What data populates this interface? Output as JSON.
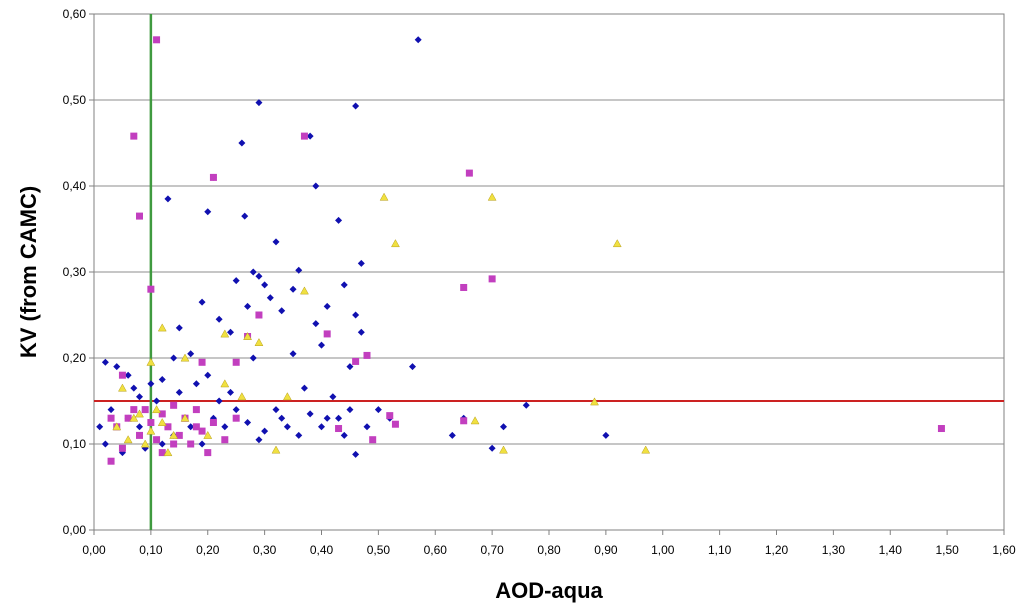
{
  "chart_data": {
    "type": "scatter",
    "title": "",
    "xlabel": "AOD-aqua",
    "ylabel": "KV (from CAMC)",
    "xlim": [
      0,
      1.6
    ],
    "ylim": [
      0,
      0.6
    ],
    "x_ticks": [
      "0,00",
      "0,10",
      "0,20",
      "0,30",
      "0,40",
      "0,50",
      "0,60",
      "0,70",
      "0,80",
      "0,90",
      "1,00",
      "1,10",
      "1,20",
      "1,30",
      "1,40",
      "1,50",
      "1,60"
    ],
    "y_ticks": [
      "0,00",
      "0,10",
      "0,20",
      "0,30",
      "0,40",
      "0,50",
      "0,60"
    ],
    "grid": {
      "horizontal": true,
      "vertical": false
    },
    "reference_lines": [
      {
        "orientation": "horizontal",
        "value": 0.15,
        "color": "#cc2222"
      },
      {
        "orientation": "vertical",
        "value": 0.1,
        "color": "#3f9a3f"
      }
    ],
    "series": [
      {
        "marker": "diamond",
        "color": "#1010b0",
        "points": [
          [
            0.02,
            0.195
          ],
          [
            0.04,
            0.19
          ],
          [
            0.06,
            0.18
          ],
          [
            0.07,
            0.165
          ],
          [
            0.08,
            0.155
          ],
          [
            0.1,
            0.17
          ],
          [
            0.11,
            0.15
          ],
          [
            0.12,
            0.175
          ],
          [
            0.13,
            0.385
          ],
          [
            0.14,
            0.2
          ],
          [
            0.15,
            0.235
          ],
          [
            0.17,
            0.205
          ],
          [
            0.19,
            0.265
          ],
          [
            0.2,
            0.37
          ],
          [
            0.21,
            0.41
          ],
          [
            0.22,
            0.245
          ],
          [
            0.24,
            0.23
          ],
          [
            0.25,
            0.29
          ],
          [
            0.26,
            0.45
          ],
          [
            0.265,
            0.365
          ],
          [
            0.27,
            0.26
          ],
          [
            0.28,
            0.3
          ],
          [
            0.29,
            0.295
          ],
          [
            0.29,
            0.497
          ],
          [
            0.3,
            0.285
          ],
          [
            0.31,
            0.27
          ],
          [
            0.32,
            0.335
          ],
          [
            0.33,
            0.255
          ],
          [
            0.35,
            0.28
          ],
          [
            0.36,
            0.302
          ],
          [
            0.38,
            0.458
          ],
          [
            0.39,
            0.4
          ],
          [
            0.39,
            0.24
          ],
          [
            0.4,
            0.215
          ],
          [
            0.41,
            0.26
          ],
          [
            0.43,
            0.36
          ],
          [
            0.44,
            0.285
          ],
          [
            0.45,
            0.19
          ],
          [
            0.46,
            0.493
          ],
          [
            0.46,
            0.25
          ],
          [
            0.47,
            0.31
          ],
          [
            0.47,
            0.23
          ],
          [
            0.5,
            0.14
          ],
          [
            0.52,
            0.13
          ],
          [
            0.56,
            0.19
          ],
          [
            0.57,
            0.57
          ],
          [
            0.63,
            0.11
          ],
          [
            0.65,
            0.13
          ],
          [
            0.7,
            0.095
          ],
          [
            0.72,
            0.12
          ],
          [
            0.76,
            0.145
          ],
          [
            0.9,
            0.11
          ],
          [
            0.2,
            0.18
          ],
          [
            0.24,
            0.16
          ],
          [
            0.28,
            0.2
          ],
          [
            0.32,
            0.14
          ],
          [
            0.35,
            0.205
          ],
          [
            0.37,
            0.165
          ],
          [
            0.42,
            0.155
          ],
          [
            0.46,
            0.088
          ],
          [
            0.05,
            0.09
          ],
          [
            0.09,
            0.095
          ],
          [
            0.12,
            0.1
          ],
          [
            0.17,
            0.12
          ],
          [
            0.21,
            0.13
          ],
          [
            0.25,
            0.14
          ],
          [
            0.3,
            0.115
          ],
          [
            0.34,
            0.12
          ],
          [
            0.38,
            0.135
          ],
          [
            0.43,
            0.13
          ],
          [
            0.48,
            0.12
          ],
          [
            0.03,
            0.14
          ],
          [
            0.01,
            0.12
          ],
          [
            0.06,
            0.13
          ],
          [
            0.15,
            0.16
          ],
          [
            0.18,
            0.17
          ],
          [
            0.22,
            0.15
          ],
          [
            0.27,
            0.125
          ],
          [
            0.33,
            0.13
          ],
          [
            0.4,
            0.12
          ],
          [
            0.45,
            0.14
          ],
          [
            0.02,
            0.1
          ],
          [
            0.08,
            0.12
          ],
          [
            0.14,
            0.11
          ],
          [
            0.19,
            0.1
          ],
          [
            0.23,
            0.12
          ],
          [
            0.29,
            0.105
          ],
          [
            0.36,
            0.11
          ],
          [
            0.41,
            0.13
          ],
          [
            0.44,
            0.11
          ]
        ]
      },
      {
        "marker": "square",
        "color": "#c23fbf",
        "points": [
          [
            0.11,
            0.57
          ],
          [
            0.07,
            0.458
          ],
          [
            0.08,
            0.365
          ],
          [
            0.1,
            0.28
          ],
          [
            0.21,
            0.41
          ],
          [
            0.37,
            0.458
          ],
          [
            0.66,
            0.415
          ],
          [
            0.65,
            0.282
          ],
          [
            0.7,
            0.292
          ],
          [
            0.41,
            0.228
          ],
          [
            0.48,
            0.203
          ],
          [
            0.46,
            0.196
          ],
          [
            0.29,
            0.25
          ],
          [
            0.27,
            0.225
          ],
          [
            0.25,
            0.195
          ],
          [
            0.19,
            0.195
          ],
          [
            0.05,
            0.18
          ],
          [
            1.49,
            0.118
          ],
          [
            0.52,
            0.133
          ],
          [
            0.53,
            0.123
          ],
          [
            0.49,
            0.105
          ],
          [
            0.43,
            0.118
          ],
          [
            0.65,
            0.127
          ],
          [
            0.03,
            0.08
          ],
          [
            0.04,
            0.12
          ],
          [
            0.06,
            0.13
          ],
          [
            0.08,
            0.11
          ],
          [
            0.09,
            0.14
          ],
          [
            0.1,
            0.125
          ],
          [
            0.11,
            0.105
          ],
          [
            0.12,
            0.135
          ],
          [
            0.13,
            0.12
          ],
          [
            0.14,
            0.145
          ],
          [
            0.15,
            0.11
          ],
          [
            0.16,
            0.13
          ],
          [
            0.17,
            0.1
          ],
          [
            0.18,
            0.14
          ],
          [
            0.19,
            0.115
          ],
          [
            0.2,
            0.09
          ],
          [
            0.21,
            0.125
          ],
          [
            0.23,
            0.105
          ],
          [
            0.25,
            0.13
          ],
          [
            0.05,
            0.095
          ],
          [
            0.07,
            0.14
          ],
          [
            0.12,
            0.09
          ],
          [
            0.03,
            0.13
          ],
          [
            0.14,
            0.1
          ],
          [
            0.18,
            0.12
          ]
        ]
      },
      {
        "marker": "triangle",
        "color": "#f0e040",
        "points": [
          [
            0.51,
            0.387
          ],
          [
            0.53,
            0.333
          ],
          [
            0.7,
            0.387
          ],
          [
            0.92,
            0.333
          ],
          [
            0.37,
            0.278
          ],
          [
            0.27,
            0.225
          ],
          [
            0.29,
            0.218
          ],
          [
            0.12,
            0.235
          ],
          [
            0.16,
            0.2
          ],
          [
            0.23,
            0.228
          ],
          [
            0.1,
            0.195
          ],
          [
            0.05,
            0.165
          ],
          [
            0.23,
            0.17
          ],
          [
            0.26,
            0.155
          ],
          [
            0.34,
            0.155
          ],
          [
            0.97,
            0.093
          ],
          [
            0.72,
            0.093
          ],
          [
            0.67,
            0.127
          ],
          [
            0.88,
            0.149
          ],
          [
            0.32,
            0.093
          ],
          [
            0.04,
            0.12
          ],
          [
            0.06,
            0.105
          ],
          [
            0.08,
            0.135
          ],
          [
            0.1,
            0.115
          ],
          [
            0.12,
            0.125
          ],
          [
            0.14,
            0.11
          ],
          [
            0.16,
            0.13
          ],
          [
            0.2,
            0.11
          ],
          [
            0.07,
            0.13
          ],
          [
            0.09,
            0.1
          ],
          [
            0.11,
            0.14
          ],
          [
            0.13,
            0.09
          ]
        ]
      }
    ]
  }
}
